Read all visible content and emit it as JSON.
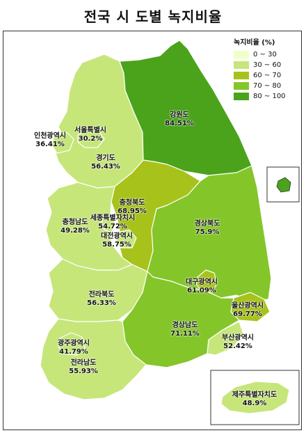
{
  "title": "전국 시 도별 녹지비율",
  "legend": {
    "title": "녹지비율 (%)",
    "items": [
      {
        "label": "0 ~ 30",
        "color": "#f0ffc8"
      },
      {
        "label": "30 ~ 60",
        "color": "#c6e67a"
      },
      {
        "label": "60 ~ 70",
        "color": "#a8c21c"
      },
      {
        "label": "70 ~ 80",
        "color": "#84c62a"
      },
      {
        "label": "80 ~ 100",
        "color": "#4aa31b"
      }
    ]
  },
  "regions": {
    "gangwon": {
      "name": "강원도",
      "value": "84.51%",
      "color": "#4aa31b"
    },
    "seoul": {
      "name": "서울특별시",
      "value": "30.2%",
      "color": "#c6e67a"
    },
    "incheon": {
      "name": "인천광역시",
      "value": "36.41%",
      "color": "#c6e67a"
    },
    "gyeonggi": {
      "name": "경기도",
      "value": "56.43%",
      "color": "#c6e67a"
    },
    "chungbuk": {
      "name": "충청북도",
      "value": "68.95%",
      "color": "#a8c21c"
    },
    "chungnam": {
      "name": "충청남도",
      "value": "49.28%",
      "color": "#c6e67a"
    },
    "sejong": {
      "name": "세종특별자치시",
      "value": "54.72%",
      "color": "#c6e67a"
    },
    "daejeon": {
      "name": "대전광역시",
      "value": "58.75%",
      "color": "#c6e67a"
    },
    "gyeongbuk": {
      "name": "경상북도",
      "value": "75.9%",
      "color": "#84c62a"
    },
    "jeonbuk": {
      "name": "전라북도",
      "value": "56.33%",
      "color": "#c6e67a"
    },
    "daegu": {
      "name": "대구광역시",
      "value": "61.09%",
      "color": "#a8c21c"
    },
    "ulsan": {
      "name": "울산광역시",
      "value": "69.77%",
      "color": "#a8c21c"
    },
    "gyeongnam": {
      "name": "경상남도",
      "value": "71.11%",
      "color": "#84c62a"
    },
    "busan": {
      "name": "부산광역시",
      "value": "52.42%",
      "color": "#c6e67a"
    },
    "gwangju": {
      "name": "광주광역시",
      "value": "41.79%",
      "color": "#c6e67a"
    },
    "jeonnam": {
      "name": "전라남도",
      "value": "55.93%",
      "color": "#c6e67a"
    },
    "jeju": {
      "name": "제주특별자치도",
      "value": "48.9%",
      "color": "#c6e67a"
    }
  }
}
